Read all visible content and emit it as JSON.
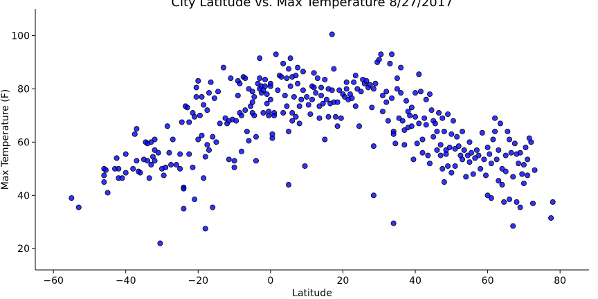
{
  "chart_data": {
    "type": "scatter",
    "title": "City Latitude vs. Max Temperature 8/27/2017",
    "xlabel": "Latitude",
    "ylabel": "Max Temperature (F)",
    "xlim": [
      -65,
      88
    ],
    "ylim": [
      12,
      110
    ],
    "xticks": [
      -60,
      -40,
      -20,
      0,
      20,
      40,
      60,
      80
    ],
    "yticks": [
      20,
      40,
      60,
      80,
      100
    ],
    "grid": false,
    "legend": "none",
    "marker_color": "#0000ff",
    "marker_edge": "#000000",
    "points": [
      [
        -55,
        39
      ],
      [
        -53,
        35.5
      ],
      [
        -46,
        45
      ],
      [
        -46,
        47.5
      ],
      [
        -46,
        50
      ],
      [
        -45.5,
        49.5
      ],
      [
        -45,
        41
      ],
      [
        -43,
        50
      ],
      [
        -42.5,
        54
      ],
      [
        -42,
        46.5
      ],
      [
        -42,
        50
      ],
      [
        -41,
        46.5
      ],
      [
        -40,
        55.5
      ],
      [
        -40,
        48.5
      ],
      [
        -38,
        50
      ],
      [
        -37.5,
        63
      ],
      [
        -37,
        65
      ],
      [
        -37,
        53
      ],
      [
        -36.5,
        49
      ],
      [
        -36,
        48.5
      ],
      [
        -35,
        53.5
      ],
      [
        -34.5,
        60
      ],
      [
        -34,
        59.5
      ],
      [
        -34,
        53
      ],
      [
        -33.5,
        46.5
      ],
      [
        -33,
        51.5
      ],
      [
        -33,
        60
      ],
      [
        -32.5,
        54.5
      ],
      [
        -32,
        61
      ],
      [
        -32,
        57
      ],
      [
        -32,
        53
      ],
      [
        -31,
        56
      ],
      [
        -30.5,
        22
      ],
      [
        -30,
        50
      ],
      [
        -29.5,
        47.5
      ],
      [
        -29,
        50.5
      ],
      [
        -28.5,
        66
      ],
      [
        -28,
        56
      ],
      [
        -27.5,
        51.5
      ],
      [
        -27,
        61
      ],
      [
        -26,
        51.5
      ],
      [
        -25,
        50
      ],
      [
        -25,
        55.5
      ],
      [
        -24.5,
        67.5
      ],
      [
        -24,
        43
      ],
      [
        -24,
        42.5
      ],
      [
        -24,
        35
      ],
      [
        -23.5,
        73.5
      ],
      [
        -23,
        73
      ],
      [
        -22.5,
        55.5
      ],
      [
        -22.5,
        67.5
      ],
      [
        -21.5,
        50.5
      ],
      [
        -21.5,
        71
      ],
      [
        -21,
        38.5
      ],
      [
        -21,
        69.5
      ],
      [
        -20.5,
        77
      ],
      [
        -20.5,
        80.5
      ],
      [
        -20,
        83
      ],
      [
        -20,
        61
      ],
      [
        -19.5,
        70
      ],
      [
        -19,
        62.5
      ],
      [
        -19,
        77
      ],
      [
        -18.5,
        74
      ],
      [
        -18.5,
        46.5
      ],
      [
        -18,
        27.5
      ],
      [
        -18,
        54.5
      ],
      [
        -17.5,
        59
      ],
      [
        -17.5,
        72
      ],
      [
        -17,
        78.5
      ],
      [
        -17,
        57
      ],
      [
        -16.5,
        82.5
      ],
      [
        -16,
        62
      ],
      [
        -16,
        35.5
      ],
      [
        -15.5,
        76.5
      ],
      [
        -15,
        60
      ],
      [
        -14.5,
        79
      ],
      [
        -14,
        67
      ],
      [
        -13,
        88
      ],
      [
        -12.5,
        69
      ],
      [
        -12,
        67
      ],
      [
        -11.5,
        53.5
      ],
      [
        -11.5,
        68
      ],
      [
        -11,
        84
      ],
      [
        -10.5,
        68.5
      ],
      [
        -10,
        50.5
      ],
      [
        -10,
        53
      ],
      [
        -9.5,
        68
      ],
      [
        -9,
        77.5
      ],
      [
        -9,
        83
      ],
      [
        -8.5,
        82
      ],
      [
        -8.5,
        71
      ],
      [
        -8,
        70
      ],
      [
        -8,
        56.5
      ],
      [
        -7.5,
        84.5
      ],
      [
        -7,
        84
      ],
      [
        -7,
        72
      ],
      [
        -6.5,
        64
      ],
      [
        -6,
        80
      ],
      [
        -6,
        60.5
      ],
      [
        -5.5,
        73.5
      ],
      [
        -5,
        71
      ],
      [
        -5,
        75
      ],
      [
        -5,
        79
      ],
      [
        -4.5,
        70
      ],
      [
        -4.5,
        77
      ],
      [
        -4,
        62
      ],
      [
        -4,
        53
      ],
      [
        -3.5,
        82
      ],
      [
        -3,
        80
      ],
      [
        -3,
        91.5
      ],
      [
        -3,
        84
      ],
      [
        -2.5,
        81
      ],
      [
        -2.5,
        78.5
      ],
      [
        -2,
        71
      ],
      [
        -2,
        79.5
      ],
      [
        -1.5,
        81
      ],
      [
        -1.5,
        83.5
      ],
      [
        -1,
        74.5
      ],
      [
        -1,
        78
      ],
      [
        -0.5,
        70
      ],
      [
        -0.5,
        71.5
      ],
      [
        0,
        82
      ],
      [
        0,
        76
      ],
      [
        0,
        81
      ],
      [
        0.5,
        61.5
      ],
      [
        0.5,
        63
      ],
      [
        1,
        71
      ],
      [
        1,
        70
      ],
      [
        1.5,
        93
      ],
      [
        2,
        79.5
      ],
      [
        2.5,
        85
      ],
      [
        3,
        84.5
      ],
      [
        3.5,
        71
      ],
      [
        3.5,
        89.5
      ],
      [
        4,
        77.5
      ],
      [
        4.5,
        84
      ],
      [
        4.5,
        73.5
      ],
      [
        5,
        64
      ],
      [
        5,
        87.5
      ],
      [
        5,
        44
      ],
      [
        5.5,
        91.5
      ],
      [
        5.5,
        81
      ],
      [
        6,
        84.5
      ],
      [
        6,
        71
      ],
      [
        6,
        68
      ],
      [
        6.5,
        77
      ],
      [
        7,
        85
      ],
      [
        7,
        69.5
      ],
      [
        7.5,
        82
      ],
      [
        7.5,
        88
      ],
      [
        8,
        73.5
      ],
      [
        8,
        67
      ],
      [
        8.5,
        76
      ],
      [
        9,
        86.5
      ],
      [
        9,
        79.5
      ],
      [
        9.5,
        51
      ],
      [
        10,
        77
      ],
      [
        10.5,
        74
      ],
      [
        11,
        70.5
      ],
      [
        11.5,
        76
      ],
      [
        11.5,
        81
      ],
      [
        12,
        80.5
      ],
      [
        12,
        86
      ],
      [
        12.5,
        78.5
      ],
      [
        13,
        84
      ],
      [
        13.5,
        69
      ],
      [
        13.5,
        73.5
      ],
      [
        14,
        77.5
      ],
      [
        14,
        80.5
      ],
      [
        14.5,
        74.5
      ],
      [
        15,
        83.5
      ],
      [
        15,
        61
      ],
      [
        15.5,
        76
      ],
      [
        16,
        80
      ],
      [
        16,
        69.5
      ],
      [
        16.5,
        74.5
      ],
      [
        17,
        100.5
      ],
      [
        17,
        79.5
      ],
      [
        17.5,
        75
      ],
      [
        17.5,
        87.5
      ],
      [
        18,
        69.5
      ],
      [
        18.5,
        75
      ],
      [
        18.5,
        66
      ],
      [
        19,
        79.5
      ],
      [
        19.5,
        69
      ],
      [
        20,
        78
      ],
      [
        20.5,
        77
      ],
      [
        21,
        82.5
      ],
      [
        21,
        80
      ],
      [
        21.5,
        76
      ],
      [
        22,
        78
      ],
      [
        22.5,
        76.5
      ],
      [
        23,
        82.5
      ],
      [
        23.5,
        73.5
      ],
      [
        23.5,
        85
      ],
      [
        24,
        80
      ],
      [
        24.5,
        66
      ],
      [
        25,
        79
      ],
      [
        25.5,
        83.5
      ],
      [
        26,
        82
      ],
      [
        26.5,
        83
      ],
      [
        27,
        80.5
      ],
      [
        27.5,
        81.5
      ],
      [
        28,
        73
      ],
      [
        28.5,
        80
      ],
      [
        28.5,
        58.5
      ],
      [
        28.5,
        40
      ],
      [
        29,
        82
      ],
      [
        29.5,
        90
      ],
      [
        30,
        91
      ],
      [
        30.5,
        93
      ],
      [
        31,
        77.5
      ],
      [
        31,
        71.5
      ],
      [
        32,
        75
      ],
      [
        32,
        79
      ],
      [
        32.5,
        68
      ],
      [
        33,
        89.5
      ],
      [
        33.5,
        93
      ],
      [
        33.5,
        76.5
      ],
      [
        34,
        64
      ],
      [
        34,
        63
      ],
      [
        34,
        29.5
      ],
      [
        34.5,
        59.5
      ],
      [
        35,
        84
      ],
      [
        35,
        80
      ],
      [
        35.5,
        69
      ],
      [
        36,
        88
      ],
      [
        36,
        78.5
      ],
      [
        36.5,
        68
      ],
      [
        37,
        59
      ],
      [
        37,
        64.5
      ],
      [
        37.5,
        75.5
      ],
      [
        38,
        71.5
      ],
      [
        38,
        65.5
      ],
      [
        38.5,
        70
      ],
      [
        39,
        73
      ],
      [
        39,
        66
      ],
      [
        39.5,
        53.5
      ],
      [
        40,
        78.5
      ],
      [
        40,
        69.5
      ],
      [
        40.5,
        59.5
      ],
      [
        41,
        85.5
      ],
      [
        41,
        67
      ],
      [
        41.5,
        79
      ],
      [
        42,
        56
      ],
      [
        42,
        61
      ],
      [
        42.5,
        69
      ],
      [
        43,
        66.5
      ],
      [
        43,
        76
      ],
      [
        43.5,
        55
      ],
      [
        44,
        78
      ],
      [
        44,
        52
      ],
      [
        44.5,
        72
      ],
      [
        45,
        68
      ],
      [
        45,
        62
      ],
      [
        45.5,
        67
      ],
      [
        46,
        64
      ],
      [
        46,
        57
      ],
      [
        46.5,
        71
      ],
      [
        47,
        59
      ],
      [
        47,
        55
      ],
      [
        47.5,
        69
      ],
      [
        47.5,
        50
      ],
      [
        48,
        45
      ],
      [
        48,
        64
      ],
      [
        48.5,
        57
      ],
      [
        48.5,
        55.5
      ],
      [
        49,
        70.5
      ],
      [
        49,
        51
      ],
      [
        49.5,
        58
      ],
      [
        50,
        63
      ],
      [
        50,
        48.5
      ],
      [
        50.5,
        68
      ],
      [
        51,
        57.5
      ],
      [
        51,
        51
      ],
      [
        51.5,
        62
      ],
      [
        52,
        58.5
      ],
      [
        52.5,
        55
      ],
      [
        53,
        64
      ],
      [
        53,
        53.5
      ],
      [
        53.5,
        57
      ],
      [
        54,
        47
      ],
      [
        54.5,
        55
      ],
      [
        55,
        60
      ],
      [
        55,
        52.5
      ],
      [
        55.5,
        56
      ],
      [
        56,
        48
      ],
      [
        56.5,
        54
      ],
      [
        57,
        57
      ],
      [
        57.5,
        55
      ],
      [
        58,
        50
      ],
      [
        58.5,
        63.5
      ],
      [
        59,
        53.5
      ],
      [
        59.5,
        47.5
      ],
      [
        60,
        58
      ],
      [
        60,
        40
      ],
      [
        60.5,
        55.5
      ],
      [
        61,
        52
      ],
      [
        61,
        39
      ],
      [
        61.5,
        61
      ],
      [
        62,
        69
      ],
      [
        62,
        64
      ],
      [
        62.5,
        53.5
      ],
      [
        63,
        57
      ],
      [
        63,
        45.5
      ],
      [
        63.5,
        67
      ],
      [
        64,
        50
      ],
      [
        64,
        44
      ],
      [
        64.5,
        37.5
      ],
      [
        65,
        55
      ],
      [
        65,
        49
      ],
      [
        65.5,
        64
      ],
      [
        66,
        61
      ],
      [
        66,
        38.5
      ],
      [
        66.5,
        56
      ],
      [
        67,
        47
      ],
      [
        67,
        28.5
      ],
      [
        67.5,
        59.5
      ],
      [
        68,
        55.5
      ],
      [
        68,
        37.5
      ],
      [
        68.5,
        52
      ],
      [
        69,
        56
      ],
      [
        69,
        35.5
      ],
      [
        69.5,
        48
      ],
      [
        70,
        51.5
      ],
      [
        70,
        44.5
      ],
      [
        70.5,
        58
      ],
      [
        71,
        53.5
      ],
      [
        71,
        47.5
      ],
      [
        71.5,
        61.5
      ],
      [
        72,
        60
      ],
      [
        72.5,
        37
      ],
      [
        73,
        49.5
      ],
      [
        77.5,
        31.5
      ],
      [
        78,
        37.5
      ]
    ]
  }
}
